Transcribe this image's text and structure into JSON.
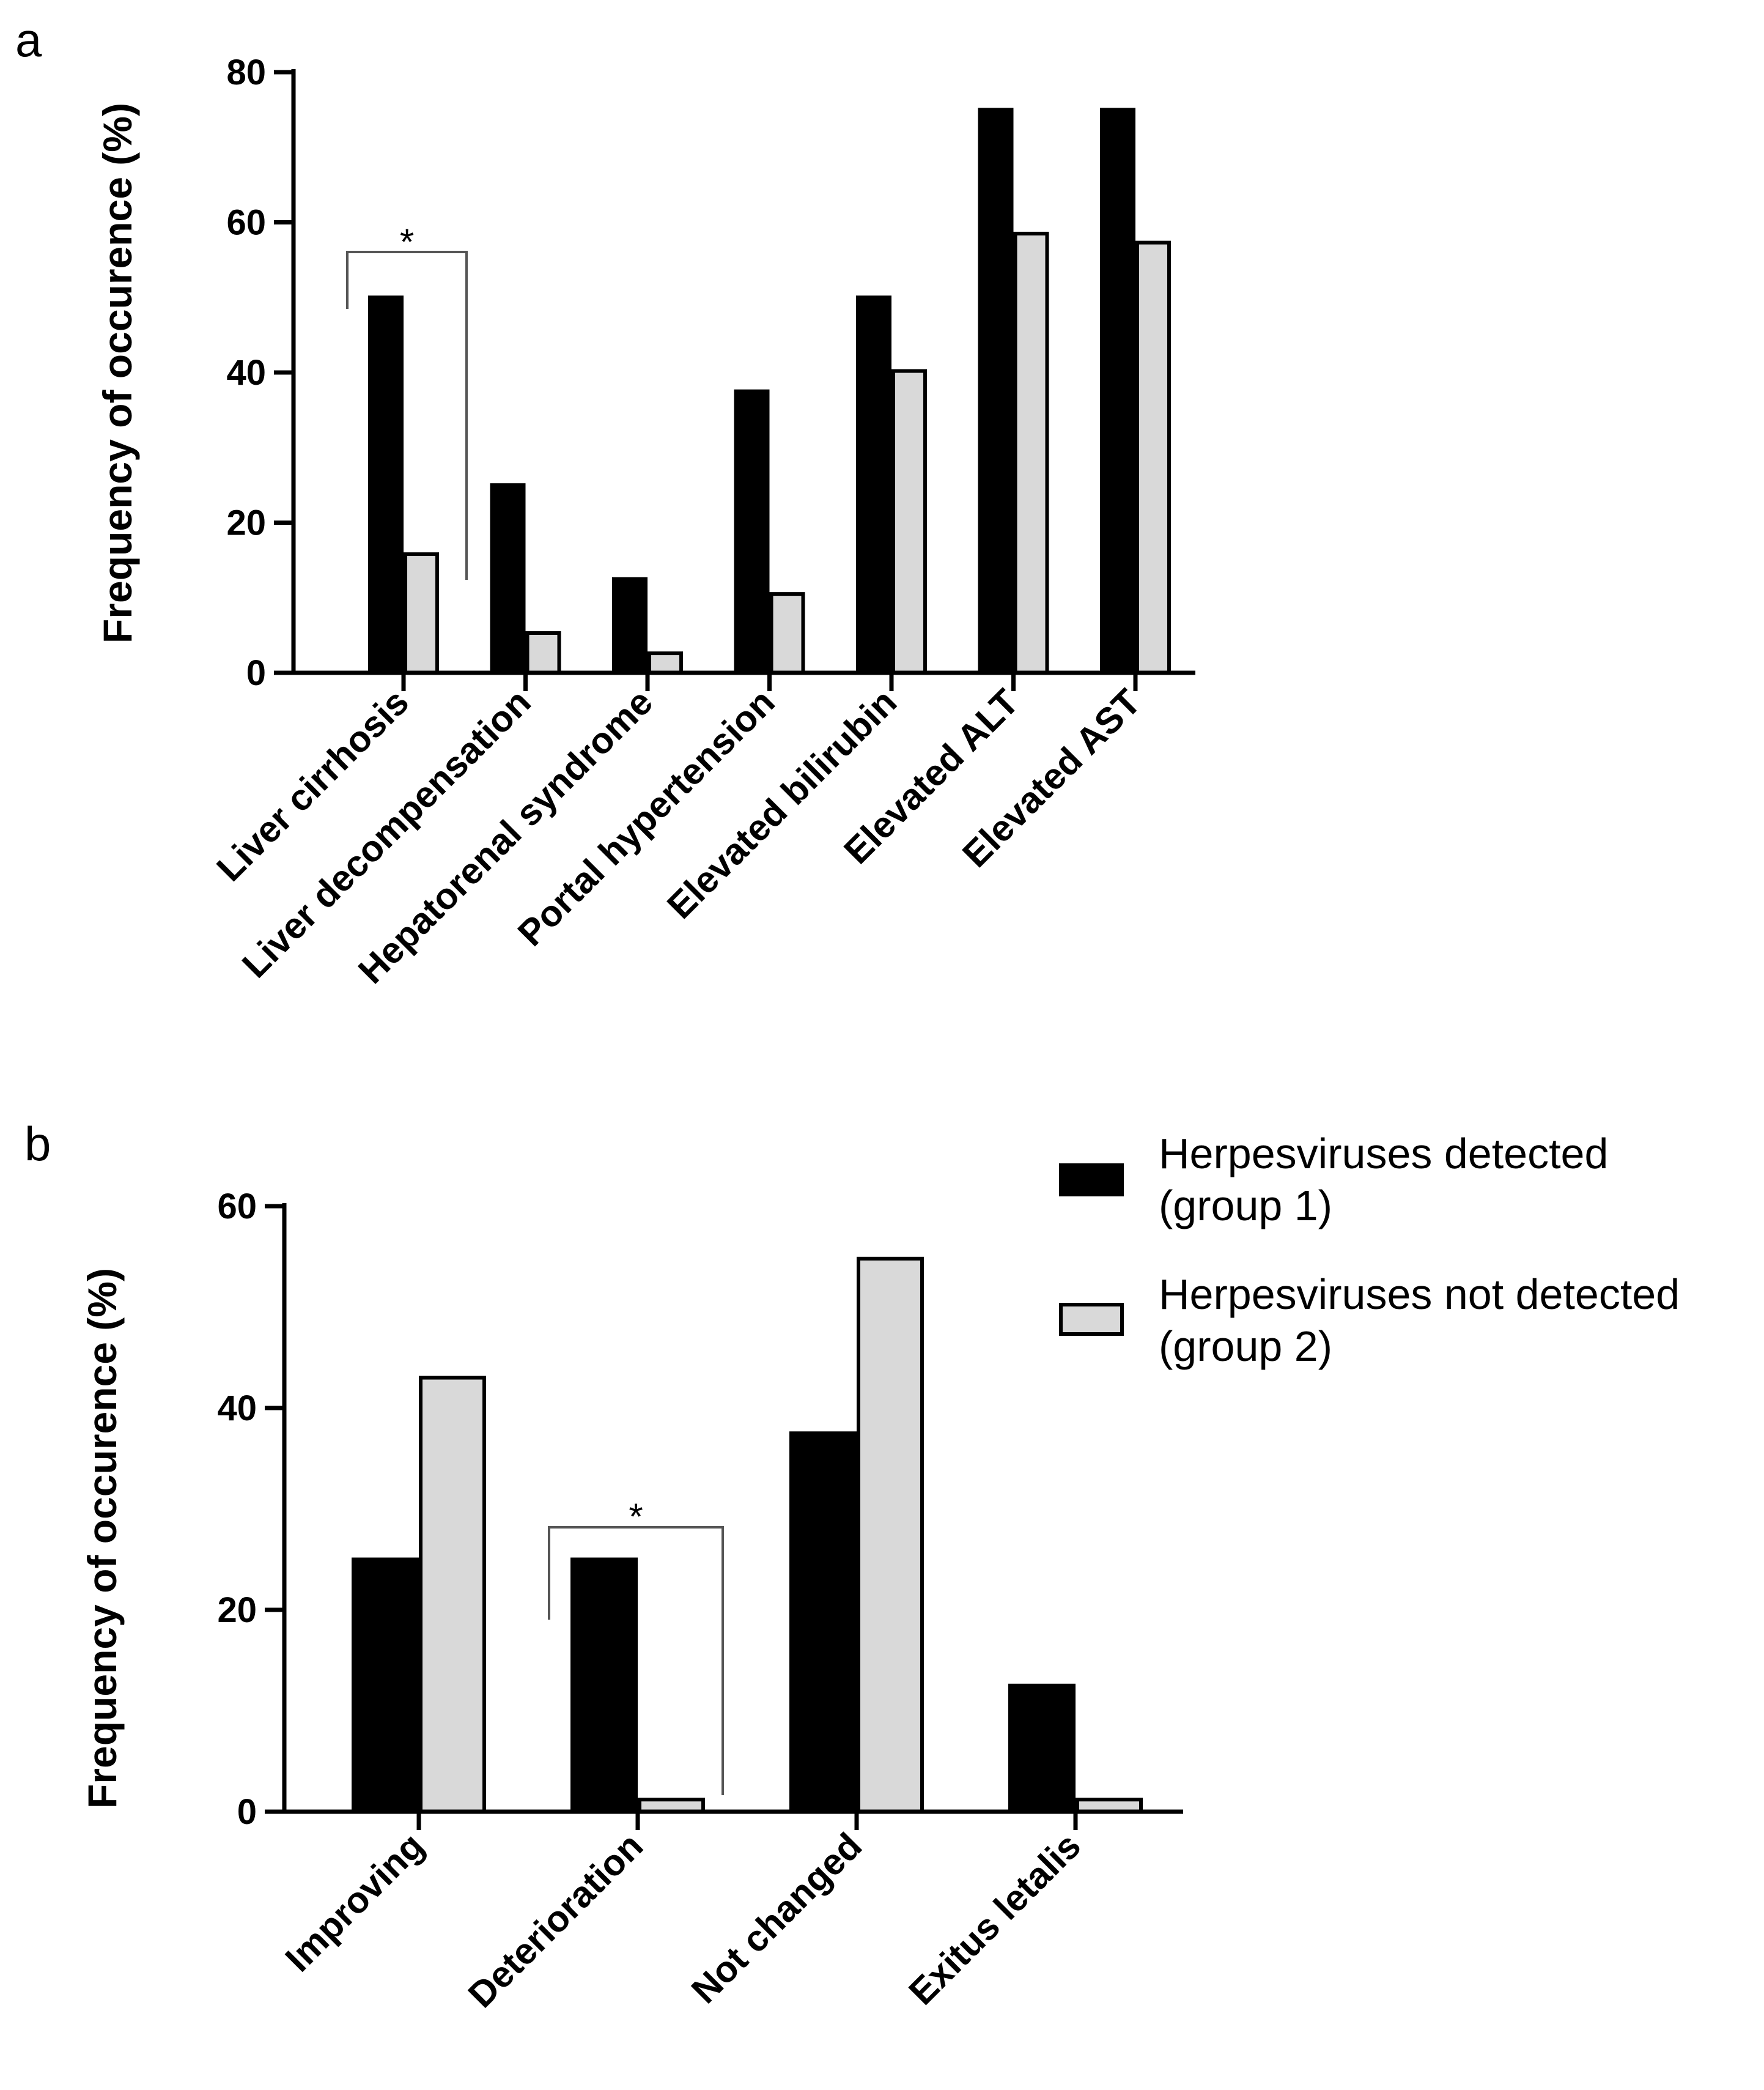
{
  "figure": {
    "colors": {
      "group1": "#000000",
      "group2": "#d9d9d9",
      "bar_stroke": "#000000"
    }
  },
  "chart_data": [
    {
      "panel": "a",
      "type": "bar",
      "title": "",
      "ylabel": "Frequency of occurence (%)",
      "xlabel": "",
      "ylim": [
        0,
        80
      ],
      "yticks": [
        "0",
        "20",
        "40",
        "60",
        "80"
      ],
      "categories": [
        "Liver cirrhosis",
        "Liver decompensation",
        "Hepatorenal syndrome",
        "Portal hypertension",
        "Elevated bilirubin",
        "Elevated ALT",
        "Elevated AST"
      ],
      "series": [
        {
          "name": "Herpesviruses detected (group 1)",
          "values": [
            50,
            25,
            12.5,
            37.5,
            50,
            75,
            75
          ]
        },
        {
          "name": "Herpesviruses not detected (group 2)",
          "values": [
            15.8,
            5.3,
            2.6,
            10.5,
            40.2,
            58.5,
            57.3
          ]
        }
      ],
      "annotations": [
        {
          "category": "Liver cirrhosis",
          "text": "*"
        }
      ]
    },
    {
      "panel": "b",
      "type": "bar",
      "title": "",
      "ylabel": "Frequency of occurence (%)",
      "xlabel": "",
      "ylim": [
        0,
        60
      ],
      "yticks": [
        "0",
        "20",
        "40",
        "60"
      ],
      "categories": [
        "Improving",
        "Deterioration",
        "Not changed",
        "Exitus letalis"
      ],
      "series": [
        {
          "name": "Herpesviruses detected (group 1)",
          "values": [
            25,
            25,
            37.5,
            12.5
          ]
        },
        {
          "name": "Herpesviruses not detected (group 2)",
          "values": [
            43,
            1.2,
            54.8,
            1.2
          ]
        }
      ],
      "annotations": [
        {
          "category": "Deterioration",
          "text": "*"
        }
      ],
      "legend": {
        "position": "top-right",
        "entries": [
          {
            "line1": "Herpesviruses detected",
            "line2": "(group 1)"
          },
          {
            "line1": "Herpesviruses not detected",
            "line2": "(group 2)"
          }
        ]
      }
    }
  ]
}
